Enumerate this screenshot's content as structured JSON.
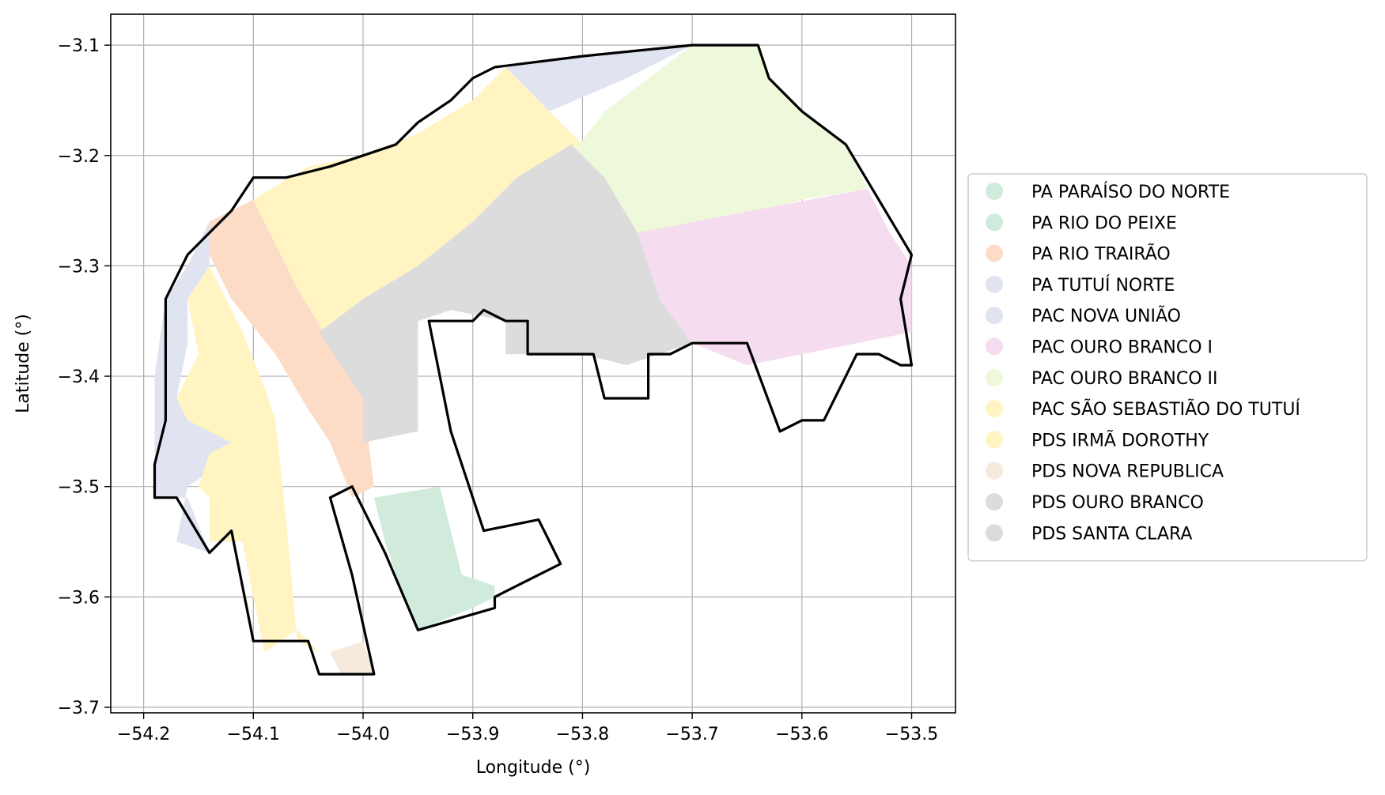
{
  "chart_data": {
    "type": "map",
    "xlabel": "Longitude (°)",
    "ylabel": "Latitude (°)",
    "xlim": [
      -54.23,
      -53.46
    ],
    "ylim": [
      -3.705,
      -3.072
    ],
    "xticks": [
      -54.2,
      -54.1,
      -54.0,
      -53.9,
      -53.8,
      -53.7,
      -53.6,
      -53.5
    ],
    "yticks": [
      -3.1,
      -3.2,
      -3.3,
      -3.4,
      -3.5,
      -3.6,
      -3.7
    ],
    "xtick_labels": [
      "−54.2",
      "−54.1",
      "−54.0",
      "−53.9",
      "−53.8",
      "−53.7",
      "−53.6",
      "−53.5"
    ],
    "ytick_labels": [
      "−3.1",
      "−3.2",
      "−3.3",
      "−3.4",
      "−3.5",
      "−3.6",
      "−3.7"
    ],
    "grid": true,
    "legend_position": "right",
    "legend": [
      {
        "name": "PA PARAÍSO DO NORTE",
        "color": "#d0ebdc"
      },
      {
        "name": "PA RIO DO PEIXE",
        "color": "#d0ebdc"
      },
      {
        "name": "PA RIO TRAIRÃO",
        "color": "#fcdcc7"
      },
      {
        "name": "PA TUTUÍ NORTE",
        "color": "#e0e3f0"
      },
      {
        "name": "PAC NOVA UNIÃO",
        "color": "#e0e3f0"
      },
      {
        "name": "PAC OURO BRANCO I",
        "color": "#f5dcee"
      },
      {
        "name": "PAC OURO BRANCO II",
        "color": "#eef8da"
      },
      {
        "name": "PAC SÃO SEBASTIÃO DO TUTUÍ",
        "color": "#fff4c2"
      },
      {
        "name": "PDS IRMÃ DOROTHY",
        "color": "#fff4c2"
      },
      {
        "name": "PDS NOVA REPUBLICA",
        "color": "#f5eadc"
      },
      {
        "name": "PDS OURO BRANCO",
        "color": "#dcdcdc"
      },
      {
        "name": "PDS SANTA CLARA",
        "color": "#dcdcdc"
      }
    ],
    "regions": [
      {
        "name": "PA TUTUÍ NORTE",
        "color": "#e0e3f0",
        "coords": [
          [
            -54.19,
            -3.51
          ],
          [
            -54.19,
            -3.47
          ],
          [
            -54.19,
            -3.4
          ],
          [
            -54.18,
            -3.33
          ],
          [
            -54.16,
            -3.3
          ],
          [
            -54.14,
            -3.26
          ],
          [
            -54.14,
            -3.3
          ],
          [
            -54.16,
            -3.33
          ],
          [
            -54.16,
            -3.37
          ],
          [
            -54.17,
            -3.42
          ],
          [
            -54.15,
            -3.44
          ],
          [
            -54.11,
            -3.45
          ],
          [
            -54.13,
            -3.48
          ],
          [
            -54.16,
            -3.5
          ],
          [
            -54.17,
            -3.55
          ],
          [
            -54.14,
            -3.56
          ],
          [
            -54.16,
            -3.51
          ],
          [
            -54.19,
            -3.51
          ]
        ]
      },
      {
        "name": "PDS IRMÃ DOROTHY",
        "color": "#fff4c2",
        "coords": [
          [
            -54.14,
            -3.3
          ],
          [
            -54.11,
            -3.36
          ],
          [
            -54.09,
            -3.41
          ],
          [
            -54.08,
            -3.44
          ],
          [
            -54.07,
            -3.53
          ],
          [
            -54.06,
            -3.64
          ],
          [
            -54.04,
            -3.65
          ],
          [
            -54.06,
            -3.63
          ],
          [
            -54.09,
            -3.65
          ],
          [
            -54.11,
            -3.55
          ],
          [
            -54.14,
            -3.55
          ],
          [
            -54.14,
            -3.51
          ],
          [
            -54.15,
            -3.5
          ],
          [
            -54.14,
            -3.47
          ],
          [
            -54.12,
            -3.46
          ],
          [
            -54.16,
            -3.44
          ],
          [
            -54.17,
            -3.42
          ],
          [
            -54.15,
            -3.38
          ],
          [
            -54.16,
            -3.33
          ]
        ]
      },
      {
        "name": "PA RIO TRAIRÃO",
        "color": "#fcdcc7",
        "coords": [
          [
            -54.14,
            -3.26
          ],
          [
            -54.1,
            -3.24
          ],
          [
            -54.08,
            -3.28
          ],
          [
            -54.06,
            -3.32
          ],
          [
            -54.03,
            -3.37
          ],
          [
            -54.0,
            -3.42
          ],
          [
            -53.99,
            -3.5
          ],
          [
            -54.01,
            -3.51
          ],
          [
            -54.03,
            -3.46
          ],
          [
            -54.05,
            -3.43
          ],
          [
            -54.08,
            -3.38
          ],
          [
            -54.12,
            -3.33
          ],
          [
            -54.14,
            -3.29
          ]
        ]
      },
      {
        "name": "PAC SÃO SEBASTIÃO DO TUTUÍ",
        "color": "#fff4c2",
        "coords": [
          [
            -54.1,
            -3.24
          ],
          [
            -54.05,
            -3.21
          ],
          [
            -54.0,
            -3.2
          ],
          [
            -53.95,
            -3.18
          ],
          [
            -53.9,
            -3.15
          ],
          [
            -53.87,
            -3.12
          ],
          [
            -53.83,
            -3.16
          ],
          [
            -53.8,
            -3.19
          ],
          [
            -53.85,
            -3.22
          ],
          [
            -53.9,
            -3.26
          ],
          [
            -53.95,
            -3.3
          ],
          [
            -54.0,
            -3.33
          ],
          [
            -54.04,
            -3.36
          ],
          [
            -54.03,
            -3.37
          ],
          [
            -54.06,
            -3.32
          ],
          [
            -54.08,
            -3.28
          ]
        ]
      },
      {
        "name": "PA TUTUÍ NORTE (north)",
        "color": "#e0e3f0",
        "coords": [
          [
            -53.87,
            -3.12
          ],
          [
            -53.8,
            -3.11
          ],
          [
            -53.7,
            -3.1
          ],
          [
            -53.76,
            -3.13
          ],
          [
            -53.83,
            -3.16
          ]
        ]
      },
      {
        "name": "PAC OURO BRANCO II",
        "color": "#eef8da",
        "coords": [
          [
            -53.7,
            -3.1
          ],
          [
            -53.64,
            -3.1
          ],
          [
            -53.63,
            -3.13
          ],
          [
            -53.6,
            -3.16
          ],
          [
            -53.56,
            -3.19
          ],
          [
            -53.54,
            -3.23
          ],
          [
            -53.6,
            -3.24
          ],
          [
            -53.67,
            -3.26
          ],
          [
            -53.75,
            -3.27
          ],
          [
            -53.78,
            -3.24
          ],
          [
            -53.81,
            -3.2
          ],
          [
            -53.78,
            -3.16
          ]
        ]
      },
      {
        "name": "PAC OURO BRANCO I",
        "color": "#f5dcee",
        "coords": [
          [
            -53.54,
            -3.23
          ],
          [
            -53.52,
            -3.27
          ],
          [
            -53.5,
            -3.3
          ],
          [
            -53.5,
            -3.36
          ],
          [
            -53.55,
            -3.37
          ],
          [
            -53.6,
            -3.38
          ],
          [
            -53.65,
            -3.39
          ],
          [
            -53.7,
            -3.37
          ],
          [
            -53.73,
            -3.33
          ],
          [
            -53.75,
            -3.3
          ],
          [
            -53.75,
            -3.27
          ]
        ]
      },
      {
        "name": "PDS OURO BRANCO",
        "color": "#dcdcdc",
        "coords": [
          [
            -53.81,
            -3.19
          ],
          [
            -53.78,
            -3.22
          ],
          [
            -53.75,
            -3.27
          ],
          [
            -53.73,
            -3.33
          ],
          [
            -53.7,
            -3.37
          ],
          [
            -53.73,
            -3.38
          ],
          [
            -53.76,
            -3.39
          ],
          [
            -53.8,
            -3.38
          ],
          [
            -53.87,
            -3.38
          ],
          [
            -53.87,
            -3.35
          ],
          [
            -53.92,
            -3.34
          ],
          [
            -53.95,
            -3.35
          ],
          [
            -53.95,
            -3.45
          ],
          [
            -54.0,
            -3.46
          ],
          [
            -54.0,
            -3.42
          ],
          [
            -54.04,
            -3.36
          ],
          [
            -54.0,
            -3.33
          ],
          [
            -53.95,
            -3.3
          ],
          [
            -53.9,
            -3.26
          ],
          [
            -53.86,
            -3.22
          ]
        ]
      },
      {
        "name": "PA RIO DO PEIXE",
        "color": "#d0ebdc",
        "coords": [
          [
            -53.99,
            -3.51
          ],
          [
            -53.93,
            -3.5
          ],
          [
            -53.91,
            -3.58
          ],
          [
            -53.88,
            -3.59
          ],
          [
            -53.88,
            -3.6
          ],
          [
            -53.9,
            -3.61
          ],
          [
            -53.95,
            -3.63
          ],
          [
            -53.97,
            -3.58
          ],
          [
            -53.98,
            -3.55
          ]
        ]
      },
      {
        "name": "PDS NOVA REPUBLICA",
        "color": "#f5eadc",
        "coords": [
          [
            -54.03,
            -3.65
          ],
          [
            -54.0,
            -3.64
          ],
          [
            -53.99,
            -3.67
          ],
          [
            -54.02,
            -3.67
          ]
        ]
      }
    ],
    "boundary": [
      [
        -54.19,
        -3.51
      ],
      [
        -54.19,
        -3.48
      ],
      [
        -54.18,
        -3.44
      ],
      [
        -54.18,
        -3.4
      ],
      [
        -54.18,
        -3.35
      ],
      [
        -54.18,
        -3.33
      ],
      [
        -54.16,
        -3.29
      ],
      [
        -54.12,
        -3.25
      ],
      [
        -54.1,
        -3.22
      ],
      [
        -54.07,
        -3.22
      ],
      [
        -54.03,
        -3.21
      ],
      [
        -54.0,
        -3.2
      ],
      [
        -53.97,
        -3.19
      ],
      [
        -53.95,
        -3.17
      ],
      [
        -53.92,
        -3.15
      ],
      [
        -53.9,
        -3.13
      ],
      [
        -53.88,
        -3.12
      ],
      [
        -53.8,
        -3.11
      ],
      [
        -53.7,
        -3.1
      ],
      [
        -53.64,
        -3.1
      ],
      [
        -53.63,
        -3.13
      ],
      [
        -53.6,
        -3.16
      ],
      [
        -53.56,
        -3.19
      ],
      [
        -53.53,
        -3.24
      ],
      [
        -53.5,
        -3.29
      ],
      [
        -53.51,
        -3.33
      ],
      [
        -53.5,
        -3.39
      ],
      [
        -53.51,
        -3.39
      ],
      [
        -53.53,
        -3.38
      ],
      [
        -53.55,
        -3.38
      ],
      [
        -53.56,
        -3.4
      ],
      [
        -53.57,
        -3.42
      ],
      [
        -53.58,
        -3.44
      ],
      [
        -53.6,
        -3.44
      ],
      [
        -53.62,
        -3.45
      ],
      [
        -53.65,
        -3.37
      ],
      [
        -53.7,
        -3.37
      ],
      [
        -53.72,
        -3.38
      ],
      [
        -53.74,
        -3.38
      ],
      [
        -53.74,
        -3.42
      ],
      [
        -53.76,
        -3.42
      ],
      [
        -53.78,
        -3.42
      ],
      [
        -53.79,
        -3.38
      ],
      [
        -53.83,
        -3.38
      ],
      [
        -53.85,
        -3.38
      ],
      [
        -53.85,
        -3.35
      ],
      [
        -53.87,
        -3.35
      ],
      [
        -53.89,
        -3.34
      ],
      [
        -53.9,
        -3.35
      ],
      [
        -53.94,
        -3.35
      ],
      [
        -53.92,
        -3.45
      ],
      [
        -53.89,
        -3.54
      ],
      [
        -53.84,
        -3.53
      ],
      [
        -53.82,
        -3.57
      ],
      [
        -53.84,
        -3.58
      ],
      [
        -53.88,
        -3.6
      ],
      [
        -53.88,
        -3.61
      ],
      [
        -53.95,
        -3.63
      ],
      [
        -53.98,
        -3.56
      ],
      [
        -54.01,
        -3.5
      ],
      [
        -54.03,
        -3.51
      ],
      [
        -54.01,
        -3.58
      ],
      [
        -53.99,
        -3.67
      ],
      [
        -54.02,
        -3.67
      ],
      [
        -54.04,
        -3.67
      ],
      [
        -54.05,
        -3.64
      ],
      [
        -54.1,
        -3.64
      ],
      [
        -54.12,
        -3.54
      ],
      [
        -54.14,
        -3.56
      ],
      [
        -54.17,
        -3.51
      ]
    ]
  }
}
